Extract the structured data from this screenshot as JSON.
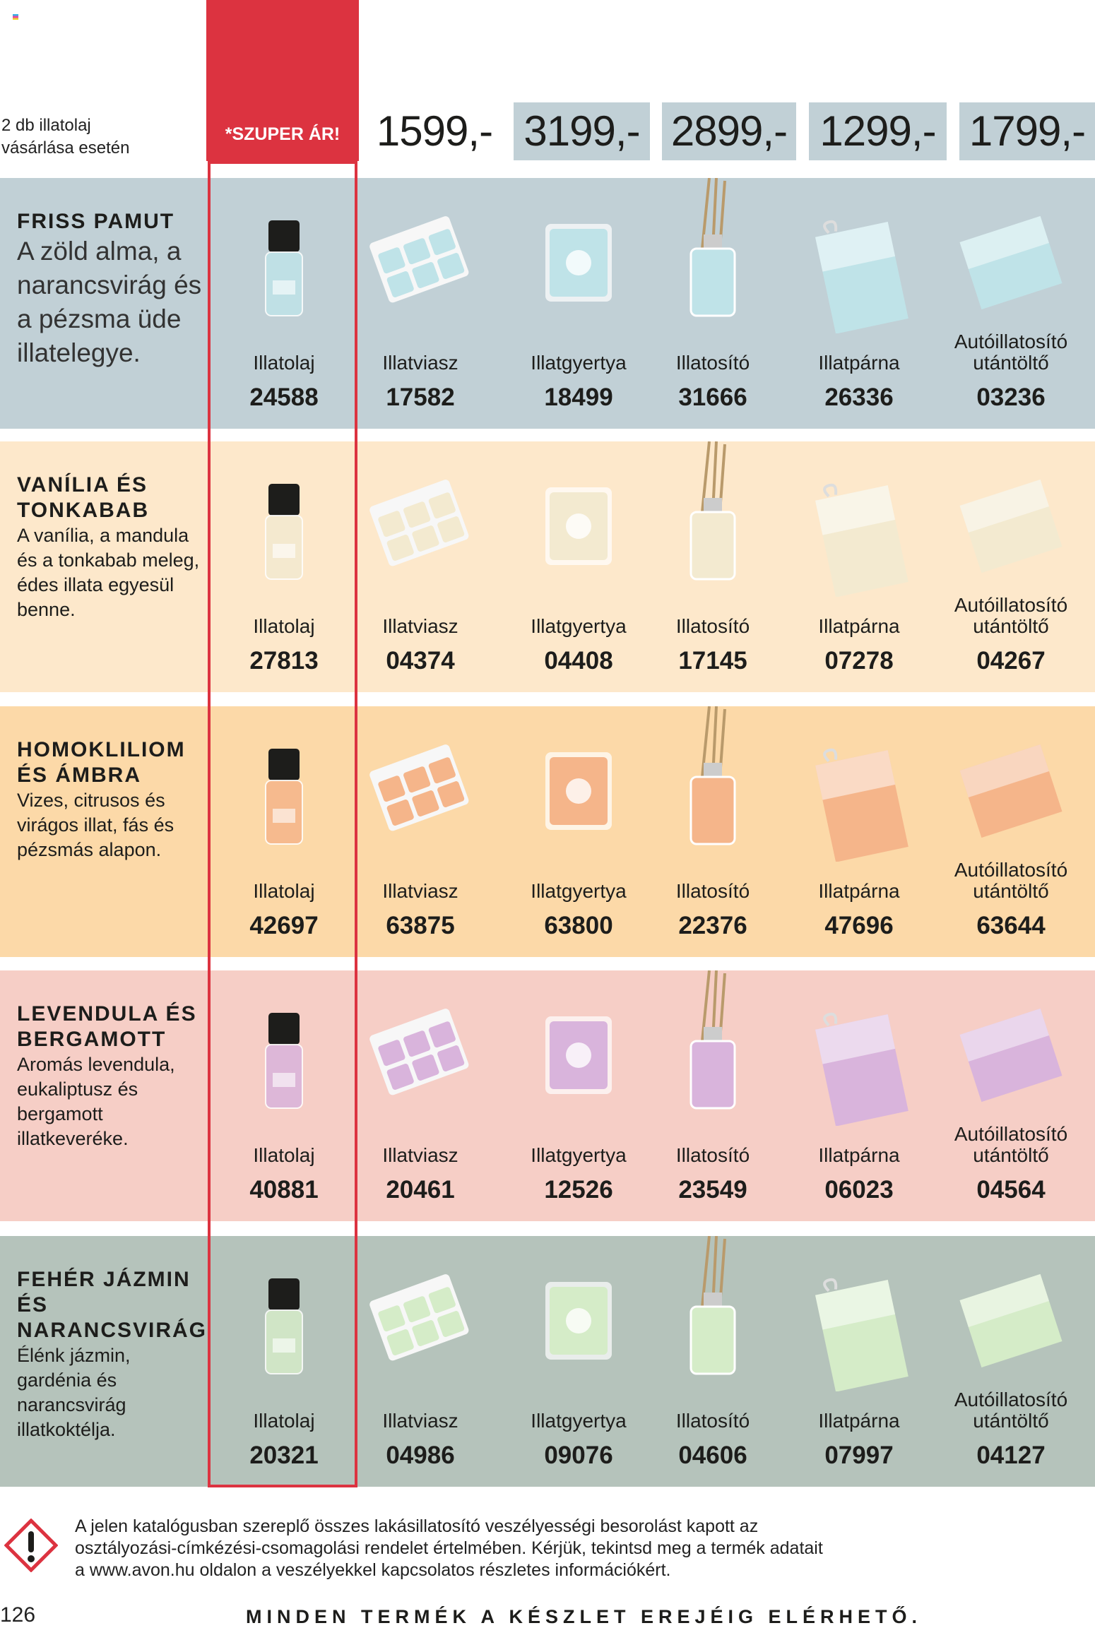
{
  "header": {
    "note_line1": "2 db illatolaj",
    "note_line2": "vásárlása esetén",
    "super_price_label": "*SZUPER ÁR!"
  },
  "prices": [
    "1599,-",
    "3199,-",
    "2899,-",
    "1299,-",
    "1799,-"
  ],
  "product_types": [
    "Illatolaj",
    "Illatviasz",
    "Illatgyertya",
    "Illatosító",
    "Illatpárna",
    "Autóillatosító utántöltő"
  ],
  "rows": [
    {
      "title": "FRISS PAMUT",
      "description": "A zöld alma, a narancsvirág és a pézsma üde illatelegye.",
      "bg": "#c1d0d6",
      "tint": "#bfe3e8",
      "codes": [
        "24588",
        "17582",
        "18499",
        "31666",
        "26336",
        "03236"
      ]
    },
    {
      "title": "VANÍLIA ÉS TONKABAB",
      "description": "A vanília, a mandula és a tonkabab meleg, édes illata egyesül benne.",
      "bg": "#fde8cb",
      "tint": "#f3ead0",
      "codes": [
        "27813",
        "04374",
        "04408",
        "17145",
        "07278",
        "04267"
      ]
    },
    {
      "title": "HOMOKLILIOM ÉS ÁMBRA",
      "description": "Vizes, citrusos és virágos illat, fás és pézsmás alapon.",
      "bg": "#fcd9a8",
      "tint": "#f5b58a",
      "codes": [
        "42697",
        "63875",
        "63800",
        "22376",
        "47696",
        "63644"
      ]
    },
    {
      "title": "LEVENDULA ÉS BERGAMOTT",
      "description": "Aromás levendula, eukaliptusz és bergamott illatkeveréke.",
      "bg": "#f6cec6",
      "tint": "#d9b4dc",
      "codes": [
        "40881",
        "20461",
        "12526",
        "23549",
        "06023",
        "04564"
      ]
    },
    {
      "title": "FEHÉR JÁZMIN ÉS NARANCSVIRÁG",
      "description": "Élénk jázmin, gardénia és narancsvirág illatkoktélja.",
      "bg": "#b5c3bb",
      "tint": "#d5ecc8",
      "codes": [
        "20321",
        "04986",
        "09076",
        "04606",
        "07997",
        "04127"
      ]
    }
  ],
  "disclaimer": "A jelen katalógusban szereplő összes lakásillatosító veszélyességi besorolást kapott az osztályozási-címkézési-csomagolási rendelet értelmében. Kérjük, tekintsd meg a termék adatait a www.avon.hu oldalon a veszélyekkel kapcsolatos részletes információkért.",
  "page_number": "126",
  "footer": "MINDEN TERMÉK A KÉSZLET EREJÉIG ELÉRHETŐ.",
  "colors": {
    "accent_red": "#dc3340",
    "price_box": "#c1d0d6"
  },
  "icons": [
    "hazard-exclamation-icon"
  ]
}
